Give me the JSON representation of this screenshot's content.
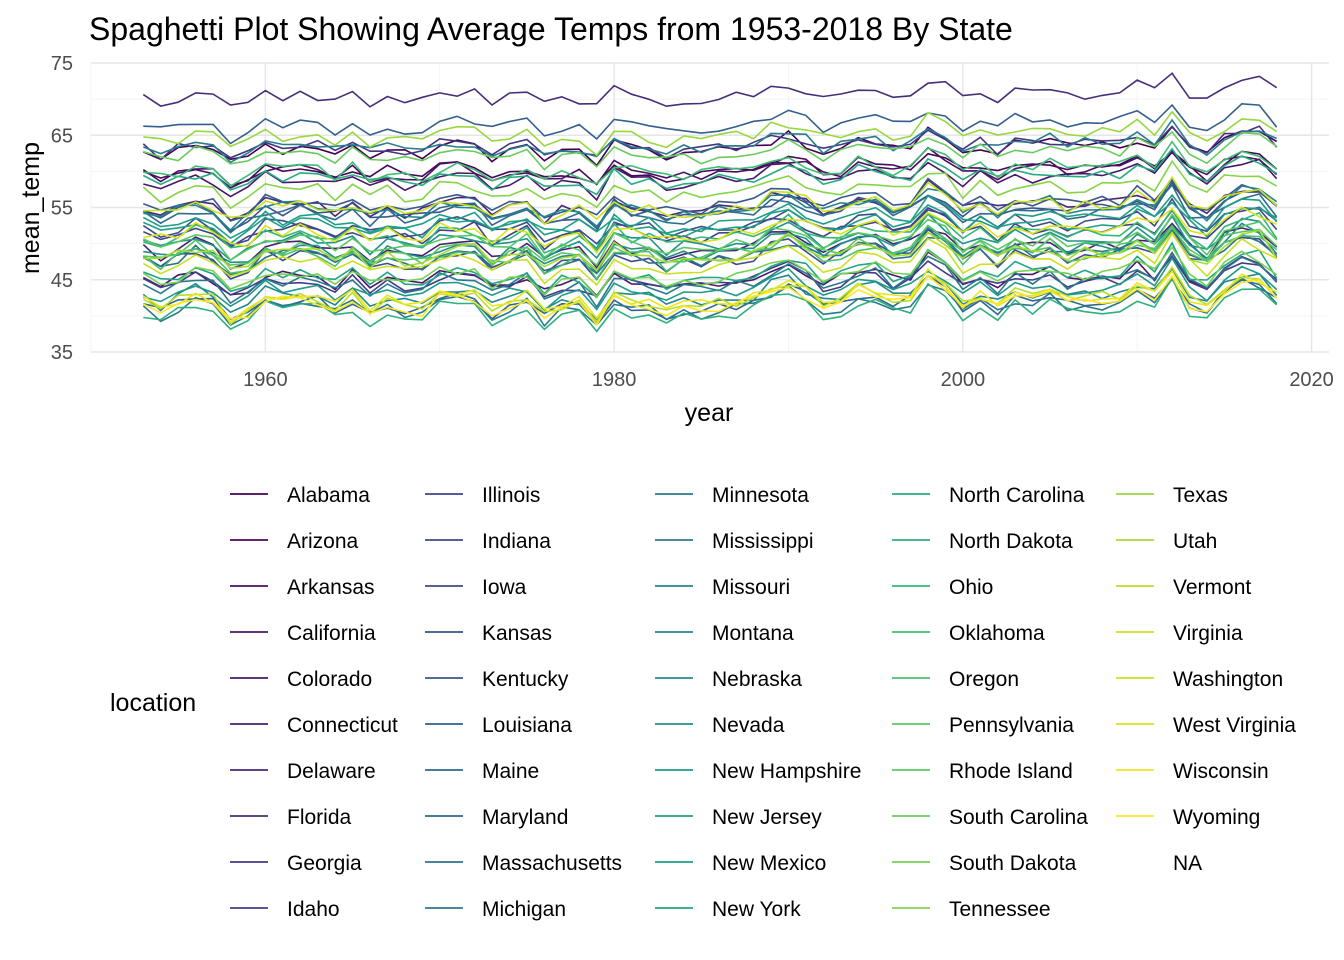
{
  "chart_data": {
    "type": "line",
    "title": "Spaghetti Plot Showing Average Temps from 1953-2018 By State",
    "xlabel": "year",
    "ylabel": "mean_temp",
    "xlim": [
      1950,
      2021
    ],
    "ylim": [
      35,
      75
    ],
    "x_ticks": [
      1960,
      1980,
      2000,
      2020
    ],
    "y_ticks": [
      35,
      45,
      55,
      65,
      75
    ],
    "grid": true,
    "year_start": 1953,
    "year_end": 2018,
    "legend": {
      "title": "location",
      "placement": "bottom",
      "columns": 5,
      "rows_per_column": 10,
      "entries": [
        "Alabama",
        "Arizona",
        "Arkansas",
        "California",
        "Colorado",
        "Connecticut",
        "Delaware",
        "Florida",
        "Georgia",
        "Idaho",
        "Illinois",
        "Indiana",
        "Iowa",
        "Kansas",
        "Kentucky",
        "Louisiana",
        "Maine",
        "Maryland",
        "Massachusetts",
        "Michigan",
        "Minnesota",
        "Mississippi",
        "Missouri",
        "Montana",
        "Nebraska",
        "Nevada",
        "New Hampshire",
        "New Jersey",
        "New Mexico",
        "New York",
        "North Carolina",
        "North Dakota",
        "Ohio",
        "Oklahoma",
        "Oregon",
        "Pennsylvania",
        "Rhode Island",
        "South Carolina",
        "South Dakota",
        "Tennessee",
        "Texas",
        "Utah",
        "Vermont",
        "Virginia",
        "Washington",
        "West Virginia",
        "Wisconsin",
        "Wyoming",
        "NA"
      ]
    },
    "palette": [
      "#440154",
      "#46085c",
      "#471063",
      "#48186a",
      "#482071",
      "#472777",
      "#462e7c",
      "#443682",
      "#423d85",
      "#3f4588",
      "#3d4c8a",
      "#3a538b",
      "#37598c",
      "#345f8d",
      "#31668e",
      "#2e6c8e",
      "#2c728e",
      "#2a788e",
      "#287d8e",
      "#26838e",
      "#24888d",
      "#228d8d",
      "#20938c",
      "#1f998a",
      "#1f9f88",
      "#21a585",
      "#26ab82",
      "#2db17e",
      "#35b779",
      "#40bd72",
      "#4cc26c",
      "#59c864",
      "#67cc5c",
      "#76d153",
      "#86d549",
      "#97d83f",
      "#a8db34",
      "#b9de28",
      "#cae11f",
      "#dbe318",
      "#ece51b",
      "#fde725"
    ],
    "series": [
      {
        "name": "Alabama",
        "base": 63.2
      },
      {
        "name": "Arizona",
        "base": 60.3
      },
      {
        "name": "Arkansas",
        "base": 60.0
      },
      {
        "name": "California",
        "base": 59.0
      },
      {
        "name": "Colorado",
        "base": 45.3
      },
      {
        "name": "Connecticut",
        "base": 49.5
      },
      {
        "name": "Delaware",
        "base": 55.3
      },
      {
        "name": "Florida",
        "base": 70.5
      },
      {
        "name": "Georgia",
        "base": 63.5
      },
      {
        "name": "Idaho",
        "base": 44.8
      },
      {
        "name": "Illinois",
        "base": 51.8
      },
      {
        "name": "Indiana",
        "base": 52.5
      },
      {
        "name": "Iowa",
        "base": 48.2
      },
      {
        "name": "Kansas",
        "base": 54.6
      },
      {
        "name": "Kentucky",
        "base": 55.7
      },
      {
        "name": "Louisiana",
        "base": 66.5
      },
      {
        "name": "Maine",
        "base": 41.8
      },
      {
        "name": "Maryland",
        "base": 54.3
      },
      {
        "name": "Massachusetts",
        "base": 48.3
      },
      {
        "name": "Michigan",
        "base": 44.7
      },
      {
        "name": "Minnesota",
        "base": 41.3
      },
      {
        "name": "Mississippi",
        "base": 63.7
      },
      {
        "name": "Missouri",
        "base": 55.0
      },
      {
        "name": "Montana",
        "base": 42.8
      },
      {
        "name": "Nebraska",
        "base": 49.2
      },
      {
        "name": "Nevada",
        "base": 50.5
      },
      {
        "name": "New Hampshire",
        "base": 43.6
      },
      {
        "name": "New Jersey",
        "base": 52.6
      },
      {
        "name": "New Mexico",
        "base": 53.3
      },
      {
        "name": "New York",
        "base": 45.8
      },
      {
        "name": "North Carolina",
        "base": 59.2
      },
      {
        "name": "North Dakota",
        "base": 40.7
      },
      {
        "name": "Ohio",
        "base": 51.2
      },
      {
        "name": "Oklahoma",
        "base": 60.3
      },
      {
        "name": "Oregon",
        "base": 48.4
      },
      {
        "name": "Pennsylvania",
        "base": 49.0
      },
      {
        "name": "Rhode Island",
        "base": 50.2
      },
      {
        "name": "South Carolina",
        "base": 62.5
      },
      {
        "name": "South Dakota",
        "base": 45.6
      },
      {
        "name": "Tennessee",
        "base": 57.5
      },
      {
        "name": "Texas",
        "base": 65.0
      },
      {
        "name": "Utah",
        "base": 48.6
      },
      {
        "name": "Vermont",
        "base": 42.4
      },
      {
        "name": "Virginia",
        "base": 55.2
      },
      {
        "name": "Washington",
        "base": 47.3
      },
      {
        "name": "West Virginia",
        "base": 51.8
      },
      {
        "name": "Wisconsin",
        "base": 42.5
      },
      {
        "name": "Wyoming",
        "base": 41.9
      }
    ]
  }
}
